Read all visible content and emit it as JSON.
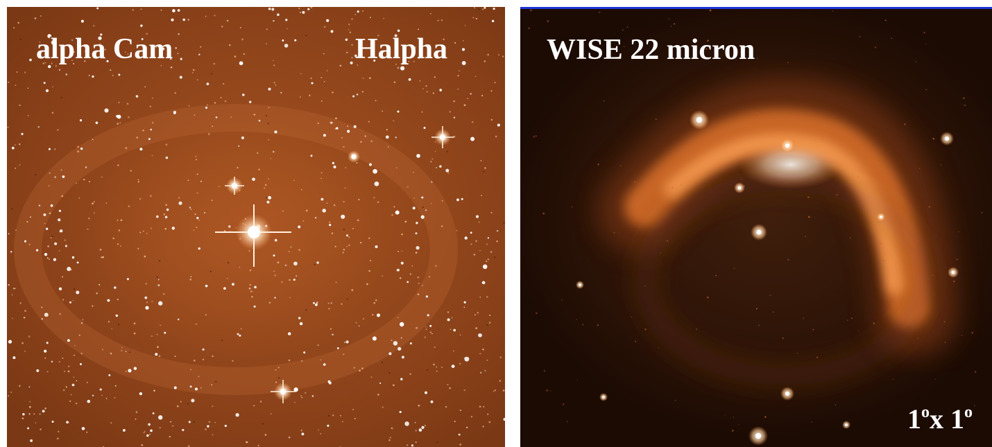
{
  "panels": [
    {
      "labels": {
        "object": "alpha Cam",
        "filter": "Halpha"
      },
      "colors": {
        "background": "#9a4a1c",
        "stars": "#ffffff"
      }
    },
    {
      "labels": {
        "band": "WISE 22 micron",
        "scale": "1ox 1o",
        "scale_value_1": "1",
        "scale_unit_1": "o",
        "scale_sep": "x ",
        "scale_value_2": "1",
        "scale_unit_2": "o"
      },
      "colors": {
        "background": "#2a1206",
        "arc": "#f08a3a",
        "arc_core": "#fff1e6",
        "top_border": "#1e35d8"
      }
    }
  ]
}
